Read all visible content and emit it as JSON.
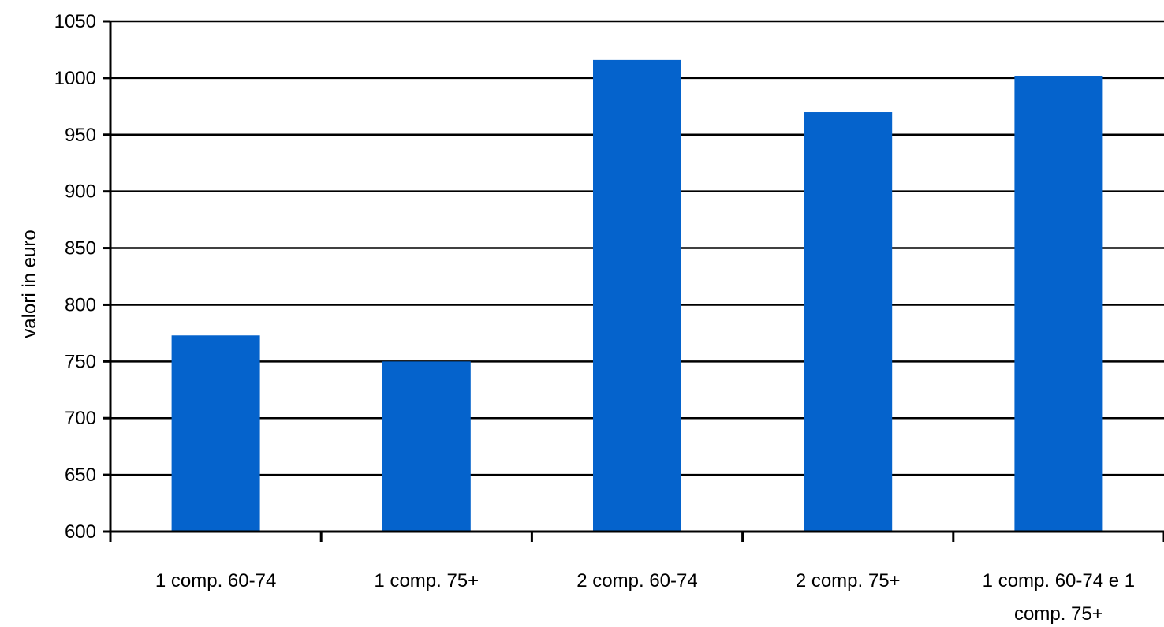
{
  "colors": {
    "bar": "#0563cc",
    "gridline": "#000000",
    "axis": "#000000",
    "background": "#ffffff"
  },
  "chart_data": {
    "type": "bar",
    "title": "",
    "xlabel": "",
    "ylabel": "valori in euro",
    "ylim": [
      600,
      1050
    ],
    "yticks": [
      600,
      650,
      700,
      750,
      800,
      850,
      900,
      950,
      1000,
      1050
    ],
    "grid": true,
    "legend": "none",
    "categories": [
      "1 comp. 60-74",
      "1 comp. 75+",
      "2 comp. 60-74",
      "2 comp. 75+",
      "1 comp. 60-74 e 1 comp. 75+"
    ],
    "category_lines": [
      [
        "1 comp. 60-74"
      ],
      [
        "1 comp. 75+"
      ],
      [
        "2 comp. 60-74"
      ],
      [
        "2 comp. 75+"
      ],
      [
        "1 comp. 60-74 e 1",
        "comp. 75+"
      ]
    ],
    "values": [
      773,
      750,
      1016,
      970,
      1002
    ]
  }
}
